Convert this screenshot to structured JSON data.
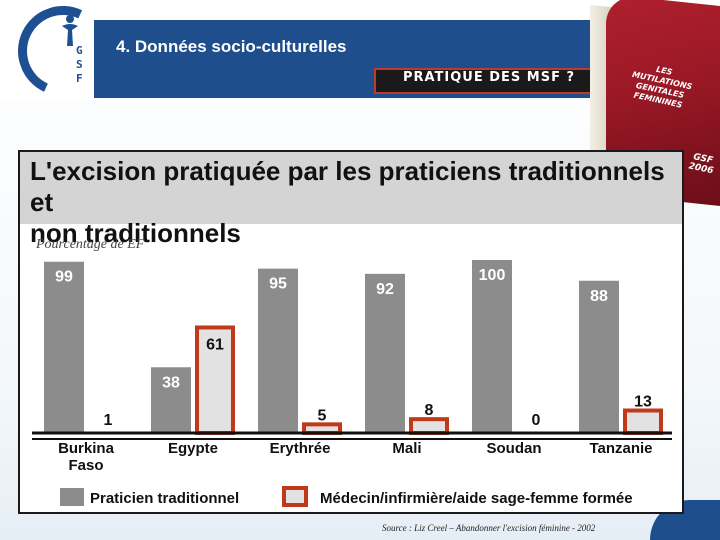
{
  "header": {
    "title": "4. Données socio-culturelles",
    "subtitle": "PRATIQUE DES MSF  ?",
    "logo_letters": [
      "G",
      "S",
      "F"
    ]
  },
  "book": {
    "title_lines": [
      "LES",
      "MUTILATIONS",
      "GENITALES",
      "FEMININES"
    ],
    "year_lines": [
      "GSF",
      "2006"
    ]
  },
  "chart_data": {
    "type": "bar",
    "title_lines": [
      "L'excision pratiquée par les praticiens traditionnels et",
      "non traditionnels"
    ],
    "ylabel": "Pourcentage de EF",
    "xlabel": "",
    "ylim": [
      0,
      100
    ],
    "grid": false,
    "legend_position": "bottom",
    "categories": [
      [
        "Burkina",
        "Faso"
      ],
      [
        "Egypte"
      ],
      [
        "Erythrée"
      ],
      [
        "Mali"
      ],
      [
        "Soudan"
      ],
      [
        "Tanzanie"
      ]
    ],
    "series": [
      {
        "name": "Praticien traditionnel",
        "values": [
          99,
          38,
          95,
          92,
          100,
          88
        ],
        "color": "#8c8c8c",
        "style": "filled"
      },
      {
        "name": "Médecin/infirmière/aide sage-femme formée",
        "values": [
          1,
          61,
          5,
          8,
          0,
          13
        ],
        "color": "#c0391b",
        "style": "outlined"
      }
    ]
  },
  "source": "Source : Liz Creel – Abandonner l'excision féminine - 2002",
  "colors": {
    "banner": "#1e4e8c",
    "accent": "#c0392b",
    "bar_grey": "#8c8c8c",
    "bar_light": "#e2e2e2"
  }
}
